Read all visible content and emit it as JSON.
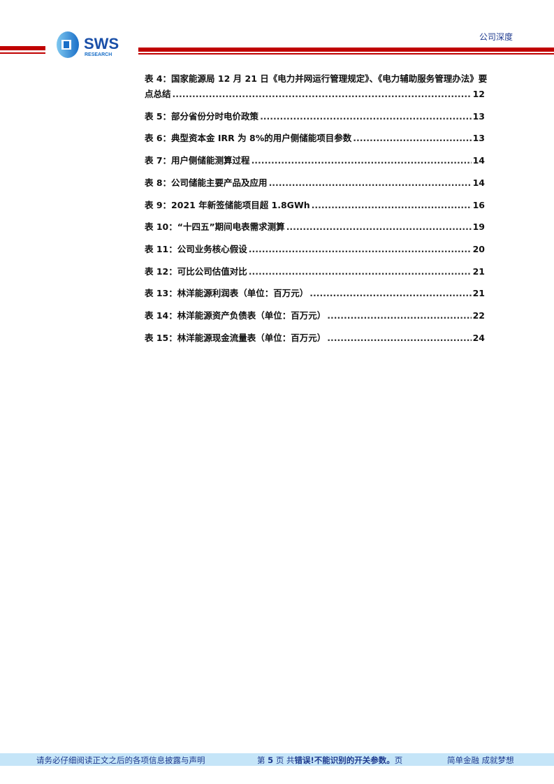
{
  "header": {
    "logo_text": "SWS",
    "logo_sub": "RESEARCH",
    "section": "公司深度",
    "accent": "#c00000",
    "logo_color": "#1a6fc8"
  },
  "toc": [
    {
      "line1": "表 4：国家能源局 12 月 21 日《电力并网运行管理规定》、《电力辅助服务管理办法》要",
      "label": "点总结",
      "page": "12"
    },
    {
      "label": "表 5：部分省份分时电价政策",
      "page": "13"
    },
    {
      "label": "表 6：典型资本金 IRR 为 8%的用户侧储能项目参数",
      "page": "13"
    },
    {
      "label": "表 7：用户侧储能测算过程",
      "page": "14"
    },
    {
      "label": "表 8：公司储能主要产品及应用",
      "page": "14"
    },
    {
      "label": "表 9：2021 年新签储能项目超 1.8GWh",
      "page": "16"
    },
    {
      "label": "表 10：“十四五”期间电表需求测算",
      "page": "19"
    },
    {
      "label": "表 11：公司业务核心假设",
      "page": "20"
    },
    {
      "label": "表 12：可比公司估值对比",
      "page": "21"
    },
    {
      "label": "表 13：林洋能源利润表（单位：百万元）",
      "page": "21"
    },
    {
      "label": "表 14：林洋能源资产负债表（单位：百万元）",
      "page": "22"
    },
    {
      "label": "表 15：林洋能源现金流量表（单位：百万元）",
      "page": "24"
    }
  ],
  "footer": {
    "left": "请务必仔细阅读正文之后的各项信息披露与声明",
    "center_pre": "第 ",
    "page_num": "5",
    "center_mid": " 页 共",
    "center_err": "错误!不能识别的开关参数。",
    "center_post": "页",
    "right": "简单金融 成就梦想",
    "bg": "#c5e5f8"
  }
}
